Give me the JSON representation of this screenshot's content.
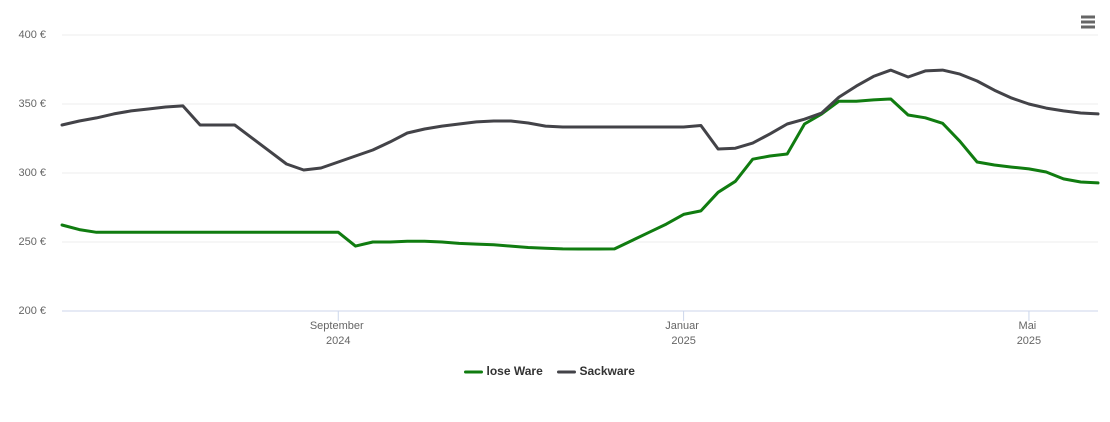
{
  "chart_data": {
    "type": "line",
    "categories": [
      null,
      null,
      null,
      null,
      null,
      null,
      null,
      null,
      null,
      null,
      null,
      null,
      null,
      null,
      null,
      null,
      "September 2024",
      null,
      null,
      null,
      null,
      null,
      null,
      null,
      null,
      null,
      null,
      null,
      null,
      null,
      null,
      null,
      null,
      null,
      null,
      null,
      "Januar 2025",
      null,
      null,
      null,
      null,
      null,
      null,
      null,
      null,
      null,
      null,
      null,
      null,
      null,
      null,
      null,
      null,
      null,
      null,
      null,
      "Mai 2025",
      null,
      null,
      null,
      null
    ],
    "series": [
      {
        "name": "lose Ware",
        "color": "#107c10",
        "values": [
          262.3,
          259,
          257,
          257,
          257,
          257,
          257,
          257,
          257,
          257,
          257,
          257,
          257,
          257,
          257,
          257,
          257,
          247,
          250,
          250,
          250.5,
          250.5,
          250,
          249,
          248.5,
          248,
          247,
          246,
          245.5,
          245,
          244.9,
          244.9,
          245,
          251,
          257,
          263,
          270,
          272.5,
          286,
          294,
          310,
          312.3,
          313.8,
          335.5,
          342.8,
          352,
          352,
          353,
          353.6,
          342,
          340,
          336,
          323,
          308,
          305.8,
          304.3,
          303,
          300.7,
          295.7,
          293.5,
          292.8
        ]
      },
      {
        "name": "Sackware",
        "color": "#434348",
        "values": [
          334.8,
          337.7,
          339.9,
          342.8,
          345,
          346.4,
          347.8,
          348.6,
          334.8,
          334.8,
          334.8,
          325.4,
          316,
          306.5,
          302.2,
          303.6,
          308,
          312.3,
          316.7,
          322.5,
          329,
          331.9,
          334,
          335.5,
          337,
          337.7,
          337.7,
          336.2,
          334,
          333.3,
          333.3,
          333.3,
          333.3,
          333.3,
          333.3,
          333.3,
          333.3,
          334.4,
          317.4,
          318,
          321.7,
          328.3,
          335.5,
          339,
          343.5,
          355,
          363,
          370,
          374.6,
          369.6,
          374,
          374.6,
          371.7,
          366.7,
          360,
          354.3,
          350,
          347,
          345,
          343.5,
          342.8
        ]
      }
    ],
    "ylim": [
      200,
      400
    ],
    "yticks": [
      {
        "value": 200,
        "label": "200 €"
      },
      {
        "value": 250,
        "label": "250 €"
      },
      {
        "value": 300,
        "label": "300 €"
      },
      {
        "value": 350,
        "label": "350 €"
      },
      {
        "value": 400,
        "label": "400 €"
      }
    ],
    "grid": true,
    "legend": "bottom"
  }
}
